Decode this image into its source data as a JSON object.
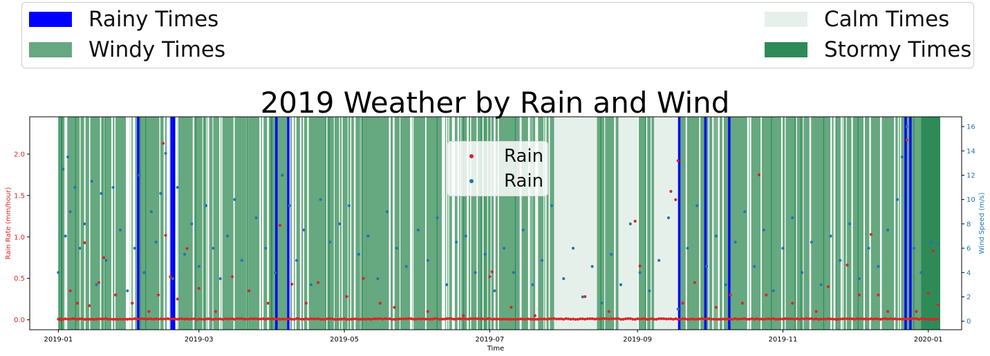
{
  "legend": {
    "items": [
      {
        "label": "Rainy Times",
        "color": "#0000ff"
      },
      {
        "label": "Windy Times",
        "color": "#66a87f"
      },
      {
        "label": "Calm Times",
        "color": "#e6f0ea"
      },
      {
        "label": "Stormy Times",
        "color": "#2e8b57"
      }
    ]
  },
  "inner_legend": {
    "items": [
      {
        "label": "Rain",
        "color": "#d62728"
      },
      {
        "label": "Rain",
        "color": "#1f77b4"
      }
    ]
  },
  "chart_data": {
    "type": "scatter",
    "title": "2019 Weather by Rain and Wind",
    "xlabel": "Time",
    "ylabel": "Rain Rate (mm/hour)",
    "y2label": "Wind Speed (m/s)",
    "x_ticks": [
      "2019-01",
      "2019-03",
      "2019-05",
      "2019-07",
      "2019-09",
      "2019-11",
      "2020-01"
    ],
    "y_ticks": [
      "0.0",
      "0.5",
      "1.0",
      "1.5",
      "2.0"
    ],
    "y2_ticks": [
      "0",
      "2",
      "4",
      "6",
      "8",
      "10",
      "12",
      "14",
      "16"
    ],
    "xlim": [
      "2018-12-20",
      "2020-01-15"
    ],
    "ylim": [
      -0.12,
      2.45
    ],
    "y2lim": [
      -0.7,
      16.8
    ],
    "grid": false,
    "colors": {
      "rain": "#d62728",
      "wind": "#1f77b4",
      "axis_left": "#d62728",
      "axis_right": "#1f77b4",
      "windy": "#66a87f",
      "calm": "#e6f0ea",
      "stormy": "#2e8b57",
      "rainy": "#0000ff"
    },
    "rainy_periods": [
      [
        "2019-02-03",
        "2019-02-04"
      ],
      [
        "2019-02-17",
        "2019-02-18"
      ],
      [
        "2019-02-18",
        "2019-02-19"
      ],
      [
        "2019-04-02",
        "2019-04-03"
      ],
      [
        "2019-04-07",
        "2019-04-08"
      ],
      [
        "2019-09-18",
        "2019-09-19"
      ],
      [
        "2019-09-29",
        "2019-09-30"
      ],
      [
        "2019-10-09",
        "2019-10-10"
      ],
      [
        "2019-12-22",
        "2019-12-23"
      ],
      [
        "2019-12-24",
        "2019-12-25"
      ]
    ],
    "calm_periods": [
      [
        "2019-07-28",
        "2019-08-15"
      ],
      [
        "2019-08-24",
        "2019-09-01"
      ],
      [
        "2019-09-08",
        "2019-09-18"
      ]
    ],
    "stormy_periods": [
      [
        "2019-12-29",
        "2020-01-06"
      ]
    ],
    "shading_range": [
      "2019-01-01",
      "2020-01-06"
    ],
    "series": [
      {
        "name": "Rain",
        "axis": "left",
        "points": [
          [
            "2019-01-02",
            0.0
          ],
          [
            "2019-01-06",
            0.35
          ],
          [
            "2019-01-09",
            0.2
          ],
          [
            "2019-01-12",
            0.93
          ],
          [
            "2019-01-14",
            0.17
          ],
          [
            "2019-01-18",
            0.45
          ],
          [
            "2019-01-20",
            0.75
          ],
          [
            "2019-01-25",
            0.3
          ],
          [
            "2019-02-01",
            0.2
          ],
          [
            "2019-02-08",
            0.1
          ],
          [
            "2019-02-12",
            0.3
          ],
          [
            "2019-02-14",
            2.13
          ],
          [
            "2019-02-15",
            1.02
          ],
          [
            "2019-02-17",
            0.52
          ],
          [
            "2019-02-20",
            0.25
          ],
          [
            "2019-02-24",
            0.86
          ],
          [
            "2019-03-01",
            0.38
          ],
          [
            "2019-03-08",
            0.1
          ],
          [
            "2019-03-15",
            0.52
          ],
          [
            "2019-03-22",
            0.35
          ],
          [
            "2019-03-30",
            0.2
          ],
          [
            "2019-04-04",
            1.14
          ],
          [
            "2019-04-09",
            0.43
          ],
          [
            "2019-04-15",
            0.2
          ],
          [
            "2019-04-20",
            0.45
          ],
          [
            "2019-05-02",
            0.28
          ],
          [
            "2019-05-09",
            0.5
          ],
          [
            "2019-05-16",
            0.2
          ],
          [
            "2019-05-22",
            0.15
          ],
          [
            "2019-06-05",
            0.1
          ],
          [
            "2019-06-20",
            0.05
          ],
          [
            "2019-07-01",
            0.52
          ],
          [
            "2019-07-02",
            0.58
          ],
          [
            "2019-07-10",
            0.15
          ],
          [
            "2019-07-20",
            0.05
          ],
          [
            "2019-08-10",
            0.28
          ],
          [
            "2019-08-20",
            0.1
          ],
          [
            "2019-08-31",
            1.19
          ],
          [
            "2019-09-02",
            0.65
          ],
          [
            "2019-09-15",
            1.55
          ],
          [
            "2019-09-17",
            1.45
          ],
          [
            "2019-09-18",
            1.92
          ],
          [
            "2019-09-20",
            0.2
          ],
          [
            "2019-09-25",
            0.45
          ],
          [
            "2019-10-04",
            0.15
          ],
          [
            "2019-10-10",
            0.3
          ],
          [
            "2019-10-15",
            0.2
          ],
          [
            "2019-10-22",
            1.75
          ],
          [
            "2019-10-25",
            0.3
          ],
          [
            "2019-11-05",
            0.2
          ],
          [
            "2019-11-15",
            0.1
          ],
          [
            "2019-11-20",
            0.4
          ],
          [
            "2019-11-28",
            0.66
          ],
          [
            "2019-12-03",
            0.3
          ],
          [
            "2019-12-08",
            1.03
          ],
          [
            "2019-12-11",
            0.3
          ],
          [
            "2019-12-15",
            0.1
          ],
          [
            "2019-12-23",
            2.17
          ],
          [
            "2019-12-27",
            0.1
          ],
          [
            "2020-01-01",
            0.32
          ],
          [
            "2020-01-03",
            0.83
          ],
          [
            "2020-01-05",
            0.18
          ]
        ]
      },
      {
        "name": "Rain",
        "axis": "right",
        "points": [
          [
            "2019-01-01",
            4.0
          ],
          [
            "2019-01-03",
            12.5
          ],
          [
            "2019-01-04",
            7.0
          ],
          [
            "2019-01-05",
            13.5
          ],
          [
            "2019-01-06",
            9.0
          ],
          [
            "2019-01-08",
            11.0
          ],
          [
            "2019-01-10",
            6.0
          ],
          [
            "2019-01-12",
            8.0
          ],
          [
            "2019-01-15",
            11.5
          ],
          [
            "2019-01-17",
            3.0
          ],
          [
            "2019-01-19",
            10.5
          ],
          [
            "2019-01-21",
            5.0
          ],
          [
            "2019-01-24",
            11.0
          ],
          [
            "2019-01-27",
            7.5
          ],
          [
            "2019-01-30",
            2.5
          ],
          [
            "2019-02-02",
            6.0
          ],
          [
            "2019-02-04",
            12.0
          ],
          [
            "2019-02-06",
            4.0
          ],
          [
            "2019-02-09",
            9.0
          ],
          [
            "2019-02-11",
            6.5
          ],
          [
            "2019-02-13",
            10.5
          ],
          [
            "2019-02-15",
            13.8
          ],
          [
            "2019-02-18",
            3.5
          ],
          [
            "2019-02-20",
            11.0
          ],
          [
            "2019-02-23",
            5.5
          ],
          [
            "2019-02-26",
            8.0
          ],
          [
            "2019-03-01",
            4.5
          ],
          [
            "2019-03-04",
            9.5
          ],
          [
            "2019-03-07",
            6.0
          ],
          [
            "2019-03-10",
            3.5
          ],
          [
            "2019-03-13",
            7.0
          ],
          [
            "2019-03-16",
            10.0
          ],
          [
            "2019-03-19",
            5.0
          ],
          [
            "2019-03-22",
            2.5
          ],
          [
            "2019-03-25",
            8.5
          ],
          [
            "2019-03-29",
            6.0
          ],
          [
            "2019-04-02",
            4.0
          ],
          [
            "2019-04-05",
            12.0
          ],
          [
            "2019-04-08",
            9.5
          ],
          [
            "2019-04-11",
            5.0
          ],
          [
            "2019-04-14",
            7.5
          ],
          [
            "2019-04-17",
            3.0
          ],
          [
            "2019-04-21",
            10.0
          ],
          [
            "2019-04-25",
            6.5
          ],
          [
            "2019-04-29",
            8.0
          ],
          [
            "2019-05-03",
            9.5
          ],
          [
            "2019-05-07",
            5.5
          ],
          [
            "2019-05-11",
            7.0
          ],
          [
            "2019-05-15",
            3.5
          ],
          [
            "2019-05-19",
            9.0
          ],
          [
            "2019-05-23",
            6.0
          ],
          [
            "2019-05-27",
            4.5
          ],
          [
            "2019-06-01",
            7.5
          ],
          [
            "2019-06-05",
            5.0
          ],
          [
            "2019-06-09",
            8.5
          ],
          [
            "2019-06-13",
            3.0
          ],
          [
            "2019-06-17",
            6.5
          ],
          [
            "2019-06-21",
            7.0
          ],
          [
            "2019-06-25",
            4.0
          ],
          [
            "2019-06-29",
            5.5
          ],
          [
            "2019-07-03",
            2.5
          ],
          [
            "2019-07-07",
            6.0
          ],
          [
            "2019-07-11",
            4.0
          ],
          [
            "2019-07-15",
            7.5
          ],
          [
            "2019-07-19",
            3.0
          ],
          [
            "2019-07-23",
            5.0
          ],
          [
            "2019-07-27",
            9.5
          ],
          [
            "2019-08-01",
            3.5
          ],
          [
            "2019-08-05",
            6.0
          ],
          [
            "2019-08-09",
            2.0
          ],
          [
            "2019-08-13",
            4.5
          ],
          [
            "2019-08-17",
            1.5
          ],
          [
            "2019-08-21",
            5.5
          ],
          [
            "2019-08-25",
            3.0
          ],
          [
            "2019-08-29",
            8.0
          ],
          [
            "2019-09-02",
            4.0
          ],
          [
            "2019-09-06",
            2.5
          ],
          [
            "2019-09-10",
            5.0
          ],
          [
            "2019-09-14",
            8.5
          ],
          [
            "2019-09-18",
            1.0
          ],
          [
            "2019-09-22",
            6.0
          ],
          [
            "2019-09-26",
            9.5
          ],
          [
            "2019-09-30",
            4.5
          ],
          [
            "2019-10-04",
            7.0
          ],
          [
            "2019-10-08",
            3.0
          ],
          [
            "2019-10-12",
            6.5
          ],
          [
            "2019-10-16",
            9.0
          ],
          [
            "2019-10-20",
            4.5
          ],
          [
            "2019-10-24",
            7.5
          ],
          [
            "2019-10-28",
            2.5
          ],
          [
            "2019-11-01",
            6.0
          ],
          [
            "2019-11-05",
            8.5
          ],
          [
            "2019-11-09",
            4.0
          ],
          [
            "2019-11-13",
            6.5
          ],
          [
            "2019-11-17",
            3.0
          ],
          [
            "2019-11-21",
            7.0
          ],
          [
            "2019-11-25",
            5.0
          ],
          [
            "2019-11-29",
            8.0
          ],
          [
            "2019-12-03",
            3.5
          ],
          [
            "2019-12-07",
            6.0
          ],
          [
            "2019-12-11",
            4.5
          ],
          [
            "2019-12-15",
            7.5
          ],
          [
            "2019-12-19",
            10.0
          ],
          [
            "2019-12-21",
            13.5
          ],
          [
            "2019-12-23",
            16.0
          ],
          [
            "2019-12-26",
            6.0
          ],
          [
            "2019-12-29",
            4.0
          ],
          [
            "2020-01-02",
            6.5
          ],
          [
            "2020-01-05",
            6.3
          ]
        ]
      }
    ]
  }
}
